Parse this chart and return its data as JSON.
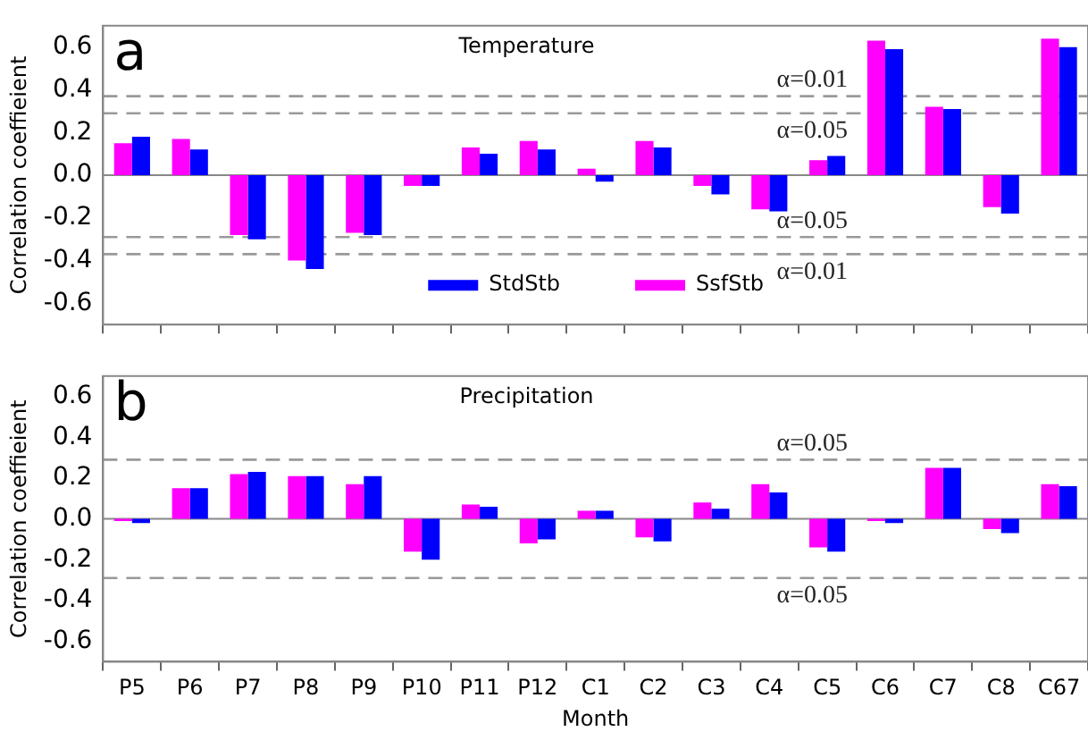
{
  "chart_data": [
    {
      "type": "bar",
      "title": "Temperature",
      "ylabel": "Correlation coeffieient",
      "annotations": [
        "a",
        {
          "text": "α=0.01",
          "y": 0.37
        },
        {
          "text": "α=0.05",
          "y": 0.29
        },
        {
          "text": "α=0.05",
          "y": -0.29
        },
        {
          "text": "α=0.01",
          "y": -0.37
        }
      ],
      "categories": [
        null,
        null,
        null,
        null,
        null,
        null,
        null,
        null,
        null,
        null,
        null,
        null,
        null,
        null,
        null,
        null,
        null
      ],
      "series": [
        {
          "name": "SsfStb",
          "color": "#ff00ff",
          "values": [
            0.15,
            0.17,
            -0.28,
            -0.4,
            -0.27,
            -0.05,
            0.13,
            0.16,
            0.03,
            0.16,
            -0.05,
            -0.16,
            0.07,
            0.63,
            0.32,
            -0.15,
            0.64
          ]
        },
        {
          "name": "StdStb",
          "color": "#0000ff",
          "values": [
            0.18,
            0.12,
            -0.3,
            -0.44,
            -0.28,
            -0.05,
            0.1,
            0.12,
            -0.03,
            0.13,
            -0.09,
            -0.17,
            0.09,
            0.59,
            0.31,
            -0.18,
            0.6
          ]
        }
      ],
      "ylim": [
        -0.7,
        0.7
      ],
      "yticks": [
        -0.6,
        -0.4,
        -0.2,
        {
          "value": 0,
          "label": "0.0"
        },
        0.2,
        0.4,
        0.6
      ],
      "ref_lines": [
        {
          "axis": "y",
          "value": 0,
          "color": "#888888",
          "line_style": "solid"
        },
        {
          "axis": "y",
          "value": 0.37,
          "color": "#999999",
          "line_style": "dashed"
        },
        {
          "axis": "y",
          "value": 0.29,
          "color": "#999999",
          "line_style": "dashed"
        },
        {
          "axis": "y",
          "value": -0.29,
          "color": "#999999",
          "line_style": "dashed"
        },
        {
          "axis": "y",
          "value": -0.37,
          "color": "#999999",
          "line_style": "dashed"
        }
      ],
      "legend": "bottom",
      "tick_labels": "y"
    },
    {
      "type": "bar",
      "title": "Precipitation",
      "xlabel": "Month",
      "ylabel": "Correlation coeffieient",
      "annotations": [
        "b",
        {
          "text": "α=0.05",
          "y": 0.29
        },
        {
          "text": "α=0.05",
          "y": -0.29
        }
      ],
      "categories": [
        "P5",
        "P6",
        "P7",
        "P8",
        "P9",
        "P10",
        "P11",
        "P12",
        "C1",
        "C2",
        "C3",
        "C4",
        "C5",
        "C6",
        "C7",
        "C8",
        "C67"
      ],
      "series": [
        {
          "color": "#ff00ff",
          "values": [
            -0.01,
            0.15,
            0.22,
            0.21,
            0.17,
            -0.16,
            0.07,
            -0.12,
            0.04,
            -0.09,
            0.08,
            0.17,
            -0.14,
            -0.01,
            0.25,
            -0.05,
            0.17
          ]
        },
        {
          "color": "#0000ff",
          "values": [
            -0.02,
            0.15,
            0.23,
            0.21,
            0.21,
            -0.2,
            0.06,
            -0.1,
            0.04,
            -0.11,
            0.05,
            0.13,
            -0.16,
            -0.02,
            0.25,
            -0.07,
            0.16
          ]
        }
      ],
      "ylim": [
        -0.7,
        0.7
      ],
      "yticks": [
        -0.6,
        -0.4,
        -0.2,
        {
          "value": 0,
          "label": "0.0"
        },
        0.2,
        0.4,
        0.6
      ],
      "ref_lines": [
        {
          "axis": "y",
          "value": 0,
          "color": "#888888",
          "line_style": "solid"
        },
        {
          "axis": "y",
          "value": 0.29,
          "color": "#999999",
          "line_style": "dashed"
        },
        {
          "axis": "y",
          "value": -0.29,
          "color": "#999999",
          "line_style": "dashed"
        }
      ]
    }
  ]
}
